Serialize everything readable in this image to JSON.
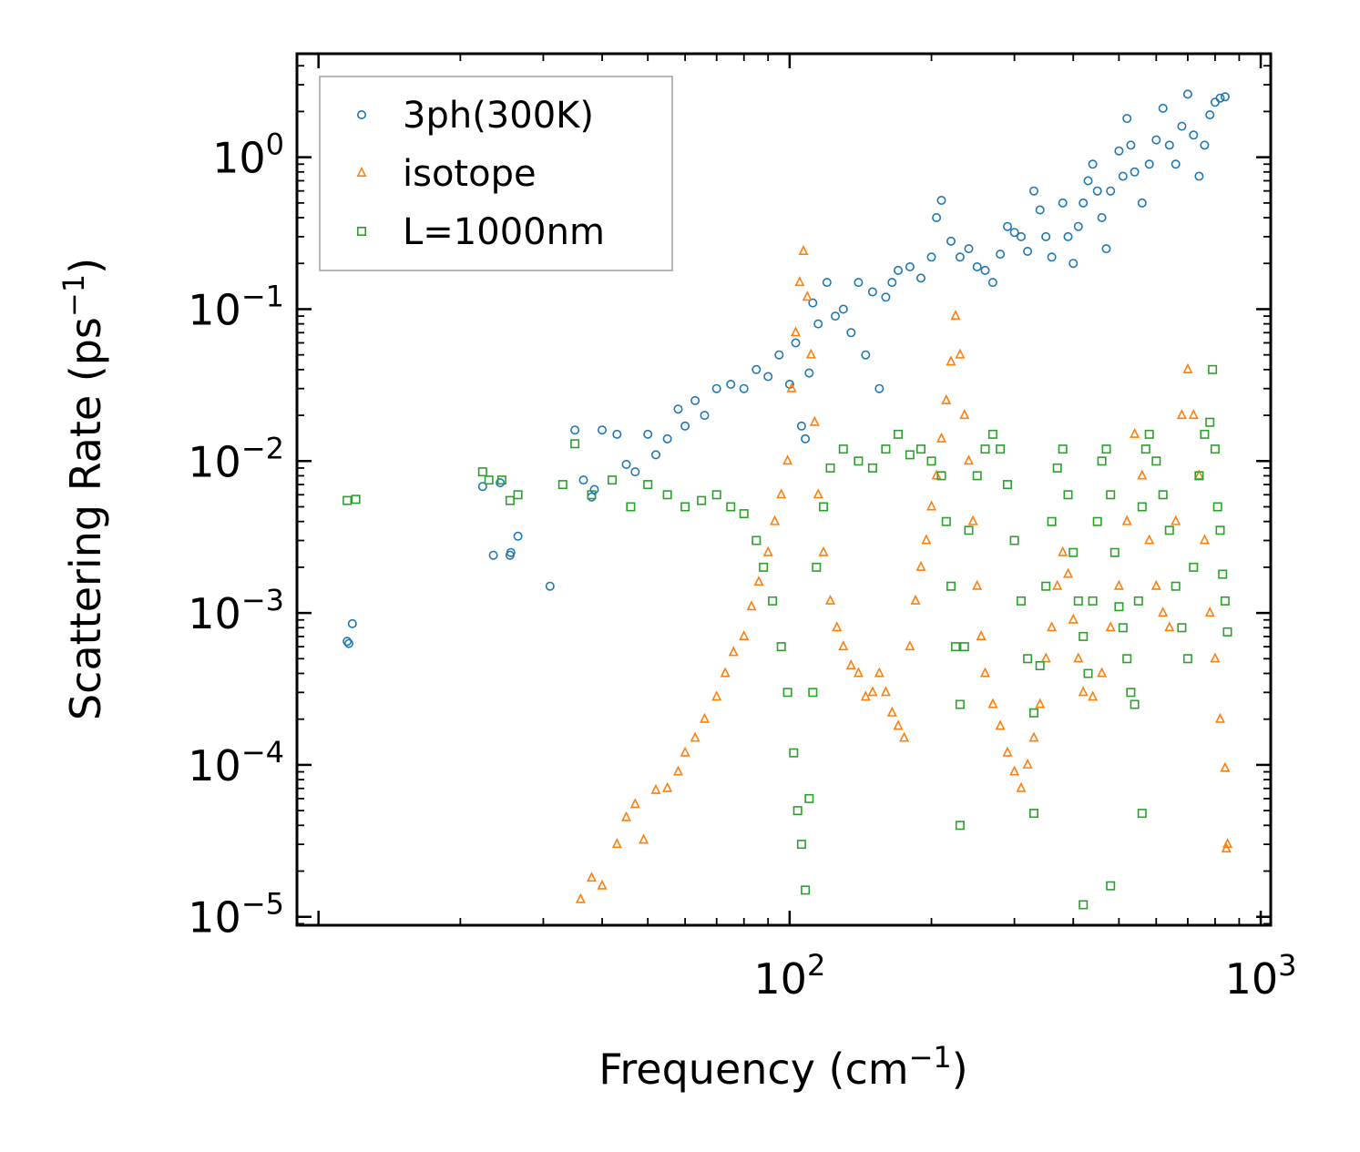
{
  "chart_data": {
    "type": "scatter",
    "xscale": "log",
    "yscale": "log",
    "xlim": [
      9,
      1050
    ],
    "ylim": [
      8.8e-06,
      4.8
    ],
    "xlabel": {
      "text": "Frequency (cm",
      "sup": "−1",
      "close": ")"
    },
    "ylabel": {
      "text": "Scattering Rate (ps",
      "sup": "−1",
      "close": ")"
    },
    "x_ticks": [
      {
        "value": 100,
        "base": "10",
        "exp": "2"
      },
      {
        "value": 1000,
        "base": "10",
        "exp": "3"
      }
    ],
    "y_ticks": [
      {
        "value": 1,
        "base": "10",
        "exp": "0"
      },
      {
        "value": 0.1,
        "base": "10",
        "exp": "−1"
      },
      {
        "value": 0.01,
        "base": "10",
        "exp": "−2"
      },
      {
        "value": 0.001,
        "base": "10",
        "exp": "−3"
      },
      {
        "value": 0.0001,
        "base": "10",
        "exp": "−4"
      },
      {
        "value": 1e-05,
        "base": "10",
        "exp": "−5"
      }
    ],
    "legend_position": "top-left",
    "series": [
      {
        "name": "3ph(300K)",
        "marker": "circle",
        "color": "#1f77b4",
        "points": [
          [
            11.5,
            0.00065
          ],
          [
            11.6,
            0.00063
          ],
          [
            11.8,
            0.00085
          ],
          [
            22.3,
            0.0068
          ],
          [
            23.5,
            0.0024
          ],
          [
            24.3,
            0.0072
          ],
          [
            25.5,
            0.0024
          ],
          [
            25.6,
            0.0025
          ],
          [
            26.5,
            0.0032
          ],
          [
            31,
            0.0015
          ],
          [
            35,
            0.016
          ],
          [
            36.5,
            0.0075
          ],
          [
            38,
            0.0058
          ],
          [
            38.5,
            0.0065
          ],
          [
            40,
            0.016
          ],
          [
            43,
            0.015
          ],
          [
            45,
            0.0095
          ],
          [
            47,
            0.0085
          ],
          [
            50,
            0.015
          ],
          [
            52,
            0.011
          ],
          [
            55,
            0.014
          ],
          [
            58,
            0.022
          ],
          [
            60,
            0.017
          ],
          [
            63,
            0.025
          ],
          [
            66,
            0.02
          ],
          [
            70,
            0.03
          ],
          [
            75,
            0.032
          ],
          [
            80,
            0.03
          ],
          [
            85,
            0.04
          ],
          [
            90,
            0.036
          ],
          [
            95,
            0.05
          ],
          [
            100,
            0.032
          ],
          [
            103,
            0.06
          ],
          [
            106,
            0.017
          ],
          [
            108,
            0.014
          ],
          [
            110,
            0.038
          ],
          [
            112,
            0.11
          ],
          [
            115,
            0.08
          ],
          [
            120,
            0.15
          ],
          [
            125,
            0.09
          ],
          [
            130,
            0.1
          ],
          [
            135,
            0.07
          ],
          [
            140,
            0.15
          ],
          [
            145,
            0.05
          ],
          [
            150,
            0.13
          ],
          [
            155,
            0.03
          ],
          [
            160,
            0.12
          ],
          [
            165,
            0.15
          ],
          [
            170,
            0.18
          ],
          [
            180,
            0.19
          ],
          [
            190,
            0.16
          ],
          [
            200,
            0.22
          ],
          [
            205,
            0.4
          ],
          [
            210,
            0.52
          ],
          [
            220,
            0.28
          ],
          [
            230,
            0.22
          ],
          [
            240,
            0.25
          ],
          [
            250,
            0.19
          ],
          [
            260,
            0.18
          ],
          [
            270,
            0.15
          ],
          [
            280,
            0.23
          ],
          [
            290,
            0.35
          ],
          [
            300,
            0.32
          ],
          [
            310,
            0.3
          ],
          [
            320,
            0.24
          ],
          [
            330,
            0.6
          ],
          [
            340,
            0.45
          ],
          [
            350,
            0.3
          ],
          [
            360,
            0.22
          ],
          [
            380,
            0.5
          ],
          [
            390,
            0.3
          ],
          [
            400,
            0.2
          ],
          [
            410,
            0.35
          ],
          [
            420,
            0.5
          ],
          [
            430,
            0.7
          ],
          [
            440,
            0.9
          ],
          [
            450,
            0.6
          ],
          [
            460,
            0.4
          ],
          [
            470,
            0.25
          ],
          [
            480,
            0.6
          ],
          [
            500,
            1.1
          ],
          [
            510,
            0.75
          ],
          [
            520,
            1.8
          ],
          [
            530,
            1.2
          ],
          [
            540,
            0.8
          ],
          [
            560,
            0.5
          ],
          [
            580,
            0.9
          ],
          [
            600,
            1.3
          ],
          [
            620,
            2.1
          ],
          [
            640,
            1.2
          ],
          [
            660,
            0.9
          ],
          [
            680,
            1.6
          ],
          [
            700,
            2.6
          ],
          [
            720,
            1.4
          ],
          [
            740,
            0.75
          ],
          [
            760,
            1.2
          ],
          [
            780,
            1.9
          ],
          [
            800,
            2.3
          ],
          [
            820,
            2.45
          ],
          [
            840,
            2.5
          ]
        ]
      },
      {
        "name": "isotope",
        "marker": "triangle",
        "color": "#ff7f0e",
        "points": [
          [
            36,
            1.3e-05
          ],
          [
            38,
            1.8e-05
          ],
          [
            40,
            1.6e-05
          ],
          [
            43,
            3e-05
          ],
          [
            45,
            4.5e-05
          ],
          [
            47,
            5.5e-05
          ],
          [
            49,
            3.2e-05
          ],
          [
            52,
            6.8e-05
          ],
          [
            55,
            7e-05
          ],
          [
            58,
            9e-05
          ],
          [
            60,
            0.00012
          ],
          [
            63,
            0.00015
          ],
          [
            66,
            0.0002
          ],
          [
            70,
            0.00028
          ],
          [
            73,
            0.0004
          ],
          [
            76,
            0.00055
          ],
          [
            80,
            0.0007
          ],
          [
            83,
            0.0011
          ],
          [
            86,
            0.0016
          ],
          [
            90,
            0.0025
          ],
          [
            93,
            0.004
          ],
          [
            96,
            0.006
          ],
          [
            99,
            0.01
          ],
          [
            101,
            0.03
          ],
          [
            103,
            0.07
          ],
          [
            105,
            0.15
          ],
          [
            107,
            0.24
          ],
          [
            109,
            0.12
          ],
          [
            111,
            0.05
          ],
          [
            113,
            0.018
          ],
          [
            115,
            0.006
          ],
          [
            118,
            0.0025
          ],
          [
            122,
            0.0012
          ],
          [
            126,
            0.0008
          ],
          [
            130,
            0.0006
          ],
          [
            135,
            0.00045
          ],
          [
            140,
            0.0004
          ],
          [
            145,
            0.00028
          ],
          [
            150,
            0.0003
          ],
          [
            155,
            0.0004
          ],
          [
            160,
            0.0003
          ],
          [
            165,
            0.00022
          ],
          [
            170,
            0.00018
          ],
          [
            175,
            0.00015
          ],
          [
            180,
            0.0006
          ],
          [
            185,
            0.0012
          ],
          [
            190,
            0.002
          ],
          [
            195,
            0.003
          ],
          [
            200,
            0.005
          ],
          [
            205,
            0.008
          ],
          [
            210,
            0.014
          ],
          [
            215,
            0.025
          ],
          [
            220,
            0.045
          ],
          [
            225,
            0.09
          ],
          [
            230,
            0.05
          ],
          [
            235,
            0.02
          ],
          [
            240,
            0.01
          ],
          [
            245,
            0.004
          ],
          [
            250,
            0.0015
          ],
          [
            255,
            0.0007
          ],
          [
            260,
            0.0004
          ],
          [
            270,
            0.00025
          ],
          [
            280,
            0.00018
          ],
          [
            290,
            0.00012
          ],
          [
            300,
            9e-05
          ],
          [
            310,
            7e-05
          ],
          [
            320,
            0.0001
          ],
          [
            330,
            0.00015
          ],
          [
            340,
            0.00025
          ],
          [
            350,
            0.0005
          ],
          [
            360,
            0.0008
          ],
          [
            370,
            0.0015
          ],
          [
            380,
            0.0025
          ],
          [
            390,
            0.0018
          ],
          [
            400,
            0.0009
          ],
          [
            410,
            0.0005
          ],
          [
            420,
            0.0003
          ],
          [
            440,
            0.00028
          ],
          [
            460,
            0.0004
          ],
          [
            480,
            0.0008
          ],
          [
            500,
            0.0015
          ],
          [
            520,
            0.004
          ],
          [
            540,
            0.015
          ],
          [
            560,
            0.008
          ],
          [
            580,
            0.003
          ],
          [
            600,
            0.0015
          ],
          [
            620,
            0.001
          ],
          [
            640,
            0.0008
          ],
          [
            660,
            0.004
          ],
          [
            680,
            0.02
          ],
          [
            700,
            0.04
          ],
          [
            720,
            0.02
          ],
          [
            740,
            0.008
          ],
          [
            760,
            0.003
          ],
          [
            780,
            0.001
          ],
          [
            800,
            0.0005
          ],
          [
            820,
            0.0002
          ],
          [
            840,
            9.5e-05
          ],
          [
            845,
            2.8e-05
          ],
          [
            850,
            3e-05
          ]
        ]
      },
      {
        "name": "L=1000nm",
        "marker": "square",
        "color": "#2ca02c",
        "points": [
          [
            11.5,
            0.0055
          ],
          [
            12,
            0.0056
          ],
          [
            22.3,
            0.0085
          ],
          [
            23,
            0.0075
          ],
          [
            24.5,
            0.0075
          ],
          [
            25.5,
            0.0055
          ],
          [
            26.5,
            0.006
          ],
          [
            33,
            0.007
          ],
          [
            35,
            0.013
          ],
          [
            38,
            0.006
          ],
          [
            42,
            0.0075
          ],
          [
            46,
            0.005
          ],
          [
            50,
            0.007
          ],
          [
            55,
            0.006
          ],
          [
            60,
            0.005
          ],
          [
            65,
            0.0055
          ],
          [
            70,
            0.006
          ],
          [
            75,
            0.005
          ],
          [
            80,
            0.0045
          ],
          [
            85,
            0.003
          ],
          [
            88,
            0.002
          ],
          [
            92,
            0.0012
          ],
          [
            96,
            0.0006
          ],
          [
            99,
            0.0003
          ],
          [
            102,
            0.00012
          ],
          [
            104,
            5e-05
          ],
          [
            106,
            3e-05
          ],
          [
            108,
            1.5e-05
          ],
          [
            110,
            6e-05
          ],
          [
            112,
            0.0003
          ],
          [
            114,
            0.002
          ],
          [
            118,
            0.005
          ],
          [
            122,
            0.009
          ],
          [
            130,
            0.012
          ],
          [
            140,
            0.01
          ],
          [
            150,
            0.009
          ],
          [
            160,
            0.012
          ],
          [
            170,
            0.015
          ],
          [
            180,
            0.011
          ],
          [
            190,
            0.012
          ],
          [
            200,
            0.01
          ],
          [
            210,
            0.008
          ],
          [
            215,
            0.004
          ],
          [
            220,
            0.0015
          ],
          [
            225,
            0.0006
          ],
          [
            230,
            0.00025
          ],
          [
            235,
            0.0006
          ],
          [
            240,
            0.0035
          ],
          [
            250,
            0.008
          ],
          [
            260,
            0.012
          ],
          [
            270,
            0.015
          ],
          [
            280,
            0.012
          ],
          [
            290,
            0.007
          ],
          [
            300,
            0.003
          ],
          [
            310,
            0.0012
          ],
          [
            320,
            0.0005
          ],
          [
            330,
            0.00022
          ],
          [
            340,
            0.00045
          ],
          [
            350,
            0.0015
          ],
          [
            360,
            0.004
          ],
          [
            370,
            0.009
          ],
          [
            380,
            0.012
          ],
          [
            390,
            0.006
          ],
          [
            400,
            0.0025
          ],
          [
            410,
            0.0012
          ],
          [
            420,
            0.0007
          ],
          [
            430,
            0.0004
          ],
          [
            440,
            0.0012
          ],
          [
            450,
            0.004
          ],
          [
            460,
            0.01
          ],
          [
            470,
            0.012
          ],
          [
            480,
            0.006
          ],
          [
            490,
            0.0025
          ],
          [
            500,
            0.0011
          ],
          [
            510,
            0.0008
          ],
          [
            520,
            0.0005
          ],
          [
            530,
            0.0003
          ],
          [
            540,
            0.00025
          ],
          [
            550,
            0.0012
          ],
          [
            560,
            0.005
          ],
          [
            570,
            0.012
          ],
          [
            580,
            0.015
          ],
          [
            600,
            0.01
          ],
          [
            620,
            0.006
          ],
          [
            640,
            0.0035
          ],
          [
            660,
            0.0015
          ],
          [
            680,
            0.0008
          ],
          [
            700,
            0.0005
          ],
          [
            720,
            0.002
          ],
          [
            740,
            0.008
          ],
          [
            760,
            0.015
          ],
          [
            780,
            0.018
          ],
          [
            790,
            0.04
          ],
          [
            800,
            0.012
          ],
          [
            810,
            0.005
          ],
          [
            820,
            0.0035
          ],
          [
            830,
            0.0018
          ],
          [
            840,
            0.0012
          ],
          [
            850,
            0.00075
          ],
          [
            420,
            1.2e-05
          ],
          [
            230,
            4e-05
          ],
          [
            560,
            4.8e-05
          ],
          [
            480,
            1.6e-05
          ],
          [
            330,
            4.8e-05
          ]
        ]
      }
    ]
  }
}
